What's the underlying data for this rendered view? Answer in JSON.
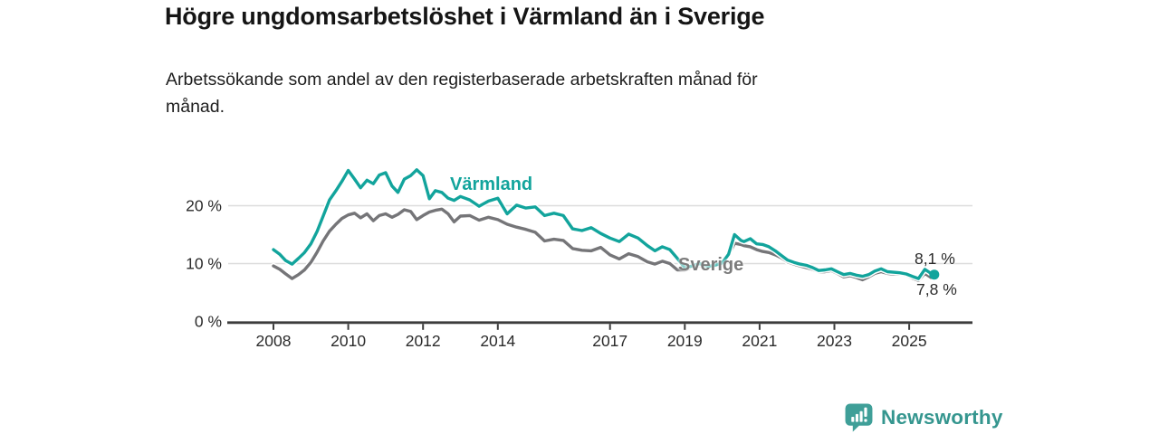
{
  "chart_data": {
    "type": "line",
    "title": "Högre ungdomsarbetslöshet i Värmland än i Sverige",
    "subtitle_line1": "Arbetssökande som andel av den registerbaserade arbetskraften månad för",
    "subtitle_line2": "månad.",
    "x_unit": "year (monthly data)",
    "grid": "horizontal",
    "legend": "inline-labels",
    "x_axis": {
      "ticks": [
        {
          "label": "2008",
          "year": 2008
        },
        {
          "label": "2010",
          "year": 2010
        },
        {
          "label": "2012",
          "year": 2012
        },
        {
          "label": "2014",
          "year": 2014
        },
        {
          "label": "2017",
          "year": 2017
        },
        {
          "label": "2019",
          "year": 2019
        },
        {
          "label": "2021",
          "year": 2021
        },
        {
          "label": "2023",
          "year": 2023
        },
        {
          "label": "2025",
          "year": 2025
        }
      ],
      "range": [
        2007.8,
        2026.7
      ]
    },
    "y_axis": {
      "unit": "%",
      "ticks": [
        {
          "label": "0 %",
          "value": 0
        },
        {
          "label": "10 %",
          "value": 10
        },
        {
          "label": "20 %",
          "value": 20
        }
      ],
      "range": [
        0,
        27
      ]
    },
    "series": [
      {
        "name": "Värmland",
        "label": "Värmland",
        "color": "#12a49c",
        "end_label": "8,1 %",
        "end_value": 8.1,
        "values": [
          [
            2008.0,
            12.4
          ],
          [
            2008.17,
            11.6
          ],
          [
            2008.33,
            10.5
          ],
          [
            2008.5,
            9.9
          ],
          [
            2008.67,
            10.9
          ],
          [
            2008.83,
            11.9
          ],
          [
            2009.0,
            13.4
          ],
          [
            2009.17,
            15.6
          ],
          [
            2009.33,
            18.2
          ],
          [
            2009.5,
            21.0
          ],
          [
            2009.67,
            22.6
          ],
          [
            2009.83,
            24.2
          ],
          [
            2010.0,
            26.1
          ],
          [
            2010.17,
            24.6
          ],
          [
            2010.33,
            23.1
          ],
          [
            2010.5,
            24.4
          ],
          [
            2010.67,
            23.8
          ],
          [
            2010.83,
            25.3
          ],
          [
            2011.0,
            25.7
          ],
          [
            2011.17,
            23.4
          ],
          [
            2011.33,
            22.3
          ],
          [
            2011.5,
            24.6
          ],
          [
            2011.67,
            25.2
          ],
          [
            2011.83,
            26.2
          ],
          [
            2012.0,
            25.2
          ],
          [
            2012.17,
            21.2
          ],
          [
            2012.33,
            22.6
          ],
          [
            2012.5,
            22.3
          ],
          [
            2012.67,
            21.3
          ],
          [
            2012.83,
            20.9
          ],
          [
            2013.0,
            21.6
          ],
          [
            2013.25,
            21.0
          ],
          [
            2013.5,
            19.9
          ],
          [
            2013.75,
            20.8
          ],
          [
            2014.0,
            21.3
          ],
          [
            2014.25,
            18.6
          ],
          [
            2014.5,
            20.1
          ],
          [
            2014.75,
            19.6
          ],
          [
            2015.0,
            19.8
          ],
          [
            2015.25,
            18.3
          ],
          [
            2015.5,
            18.7
          ],
          [
            2015.75,
            18.3
          ],
          [
            2016.0,
            16.0
          ],
          [
            2016.25,
            15.7
          ],
          [
            2016.5,
            16.2
          ],
          [
            2016.75,
            15.2
          ],
          [
            2017.0,
            14.4
          ],
          [
            2017.25,
            13.8
          ],
          [
            2017.5,
            15.1
          ],
          [
            2017.75,
            14.4
          ],
          [
            2018.0,
            13.1
          ],
          [
            2018.2,
            12.2
          ],
          [
            2018.4,
            12.9
          ],
          [
            2018.6,
            12.4
          ],
          [
            2018.8,
            10.9
          ],
          [
            2019.0,
            9.3
          ],
          [
            2019.2,
            9.6
          ],
          [
            2019.4,
            10.0
          ],
          [
            2019.6,
            9.5
          ],
          [
            2019.8,
            9.7
          ],
          [
            2020.0,
            10.1
          ],
          [
            2020.17,
            11.6
          ],
          [
            2020.33,
            15.0
          ],
          [
            2020.5,
            14.0
          ],
          [
            2020.58,
            13.8
          ],
          [
            2020.75,
            14.3
          ],
          [
            2020.92,
            13.4
          ],
          [
            2021.08,
            13.3
          ],
          [
            2021.25,
            12.9
          ],
          [
            2021.42,
            12.2
          ],
          [
            2021.58,
            11.4
          ],
          [
            2021.75,
            10.6
          ],
          [
            2021.92,
            10.2
          ],
          [
            2022.08,
            9.9
          ],
          [
            2022.25,
            9.7
          ],
          [
            2022.42,
            9.3
          ],
          [
            2022.58,
            8.8
          ],
          [
            2022.75,
            8.9
          ],
          [
            2022.92,
            9.1
          ],
          [
            2023.08,
            8.6
          ],
          [
            2023.25,
            8.1
          ],
          [
            2023.42,
            8.3
          ],
          [
            2023.58,
            8.0
          ],
          [
            2023.75,
            7.8
          ],
          [
            2023.92,
            8.1
          ],
          [
            2024.08,
            8.7
          ],
          [
            2024.25,
            9.1
          ],
          [
            2024.42,
            8.6
          ],
          [
            2024.58,
            8.5
          ],
          [
            2024.75,
            8.4
          ],
          [
            2024.92,
            8.2
          ],
          [
            2025.08,
            7.8
          ],
          [
            2025.25,
            7.4
          ],
          [
            2025.42,
            9.0
          ],
          [
            2025.58,
            8.3
          ],
          [
            2025.67,
            8.1
          ]
        ]
      },
      {
        "name": "Sverige",
        "label": "Sverige",
        "color": "#757578",
        "end_label": "7,8 %",
        "end_value": 7.8,
        "values": [
          [
            2008.0,
            9.6
          ],
          [
            2008.17,
            9.0
          ],
          [
            2008.33,
            8.2
          ],
          [
            2008.5,
            7.4
          ],
          [
            2008.67,
            8.1
          ],
          [
            2008.83,
            8.9
          ],
          [
            2009.0,
            10.2
          ],
          [
            2009.17,
            12.0
          ],
          [
            2009.33,
            13.9
          ],
          [
            2009.5,
            15.6
          ],
          [
            2009.67,
            16.8
          ],
          [
            2009.83,
            17.8
          ],
          [
            2010.0,
            18.4
          ],
          [
            2010.17,
            18.7
          ],
          [
            2010.33,
            17.9
          ],
          [
            2010.5,
            18.6
          ],
          [
            2010.67,
            17.4
          ],
          [
            2010.83,
            18.3
          ],
          [
            2011.0,
            18.6
          ],
          [
            2011.17,
            18.0
          ],
          [
            2011.33,
            18.5
          ],
          [
            2011.5,
            19.3
          ],
          [
            2011.67,
            19.0
          ],
          [
            2011.83,
            17.6
          ],
          [
            2012.0,
            18.3
          ],
          [
            2012.17,
            18.9
          ],
          [
            2012.33,
            19.2
          ],
          [
            2012.5,
            19.4
          ],
          [
            2012.67,
            18.6
          ],
          [
            2012.83,
            17.2
          ],
          [
            2013.0,
            18.2
          ],
          [
            2013.25,
            18.3
          ],
          [
            2013.5,
            17.5
          ],
          [
            2013.75,
            18.0
          ],
          [
            2014.0,
            17.6
          ],
          [
            2014.25,
            16.8
          ],
          [
            2014.5,
            16.3
          ],
          [
            2014.75,
            15.9
          ],
          [
            2015.0,
            15.4
          ],
          [
            2015.25,
            13.9
          ],
          [
            2015.5,
            14.2
          ],
          [
            2015.75,
            14.0
          ],
          [
            2016.0,
            12.6
          ],
          [
            2016.25,
            12.3
          ],
          [
            2016.5,
            12.2
          ],
          [
            2016.75,
            12.8
          ],
          [
            2017.0,
            11.5
          ],
          [
            2017.25,
            10.8
          ],
          [
            2017.5,
            11.7
          ],
          [
            2017.75,
            11.2
          ],
          [
            2018.0,
            10.3
          ],
          [
            2018.2,
            9.9
          ],
          [
            2018.4,
            10.4
          ],
          [
            2018.6,
            10.0
          ],
          [
            2018.8,
            8.9
          ],
          [
            2019.0,
            8.9
          ],
          [
            2019.2,
            9.4
          ],
          [
            2019.4,
            9.7
          ],
          [
            2019.6,
            9.4
          ],
          [
            2019.8,
            9.6
          ],
          [
            2020.0,
            10.0
          ],
          [
            2020.17,
            11.4
          ],
          [
            2020.33,
            13.5
          ],
          [
            2020.5,
            13.3
          ],
          [
            2020.58,
            13.1
          ],
          [
            2020.75,
            12.9
          ],
          [
            2020.92,
            12.4
          ],
          [
            2021.08,
            12.1
          ],
          [
            2021.25,
            11.9
          ],
          [
            2021.42,
            11.5
          ],
          [
            2021.58,
            11.0
          ],
          [
            2021.75,
            10.3
          ],
          [
            2021.92,
            9.9
          ],
          [
            2022.08,
            9.6
          ],
          [
            2022.25,
            9.3
          ],
          [
            2022.42,
            9.0
          ],
          [
            2022.58,
            8.6
          ],
          [
            2022.75,
            8.6
          ],
          [
            2022.92,
            8.8
          ],
          [
            2023.08,
            8.3
          ],
          [
            2023.25,
            7.7
          ],
          [
            2023.42,
            7.9
          ],
          [
            2023.58,
            7.6
          ],
          [
            2023.75,
            7.2
          ],
          [
            2023.92,
            7.7
          ],
          [
            2024.08,
            8.3
          ],
          [
            2024.25,
            8.6
          ],
          [
            2024.42,
            8.3
          ],
          [
            2024.58,
            8.2
          ],
          [
            2024.75,
            8.2
          ],
          [
            2024.92,
            8.0
          ],
          [
            2025.08,
            7.5
          ],
          [
            2025.25,
            7.1
          ],
          [
            2025.42,
            8.3
          ],
          [
            2025.58,
            7.6
          ],
          [
            2025.67,
            7.8
          ]
        ]
      }
    ]
  },
  "colors": {
    "accent_teal": "#12a49c",
    "line_gray": "#757578",
    "axis": "#3c3c3c",
    "gridline": "#dcdcdc",
    "tick_label": "#2b2b2b"
  },
  "branding": {
    "logo_text": "Newsworthy",
    "logo_icon": "bar-chart-speech-bubble-icon",
    "logo_color": "#3f9f98"
  }
}
